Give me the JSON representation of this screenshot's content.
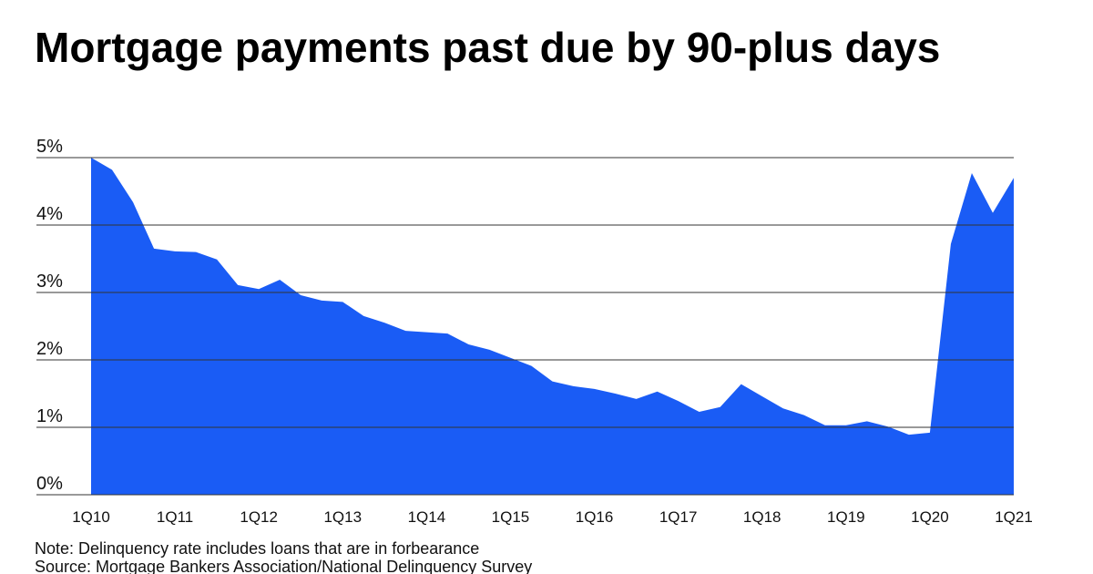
{
  "chart_data": {
    "type": "area",
    "title": "Mortgage payments past due by 90-plus days",
    "notes": [
      "Note: Delinquency rate includes loans that are in forbearance",
      "Source: Mortgage Bankers Association/National Delinquency Survey"
    ],
    "categories": [
      "1Q10",
      null,
      null,
      null,
      "1Q11",
      null,
      null,
      null,
      "1Q12",
      null,
      null,
      null,
      "1Q13",
      null,
      null,
      null,
      "1Q14",
      null,
      null,
      null,
      "1Q15",
      null,
      null,
      null,
      "1Q16",
      null,
      null,
      null,
      "1Q17",
      null,
      null,
      null,
      "1Q18",
      null,
      null,
      null,
      "1Q19",
      null,
      null,
      null,
      "1Q20",
      null,
      null,
      null,
      "1Q21"
    ],
    "values": [
      5.0,
      4.82,
      4.34,
      3.65,
      3.61,
      3.6,
      3.49,
      3.11,
      3.05,
      3.19,
      2.96,
      2.88,
      2.86,
      2.65,
      2.55,
      2.43,
      2.41,
      2.39,
      2.23,
      2.15,
      2.03,
      1.91,
      1.68,
      1.61,
      1.57,
      1.5,
      1.42,
      1.53,
      1.39,
      1.23,
      1.3,
      1.64,
      1.46,
      1.28,
      1.18,
      1.03,
      1.03,
      1.09,
      1.01,
      0.89,
      0.92,
      3.72,
      4.77,
      4.18,
      4.7
    ],
    "color": "#1a5cf5",
    "ylim": [
      0,
      5
    ],
    "yticks": [
      {
        "value": 0,
        "label": "0%"
      },
      {
        "value": 1,
        "label": "1%"
      },
      {
        "value": 2,
        "label": "2%"
      },
      {
        "value": 3,
        "label": "3%"
      },
      {
        "value": 4,
        "label": "4%"
      },
      {
        "value": 5,
        "label": "5%"
      }
    ],
    "grid": true
  }
}
